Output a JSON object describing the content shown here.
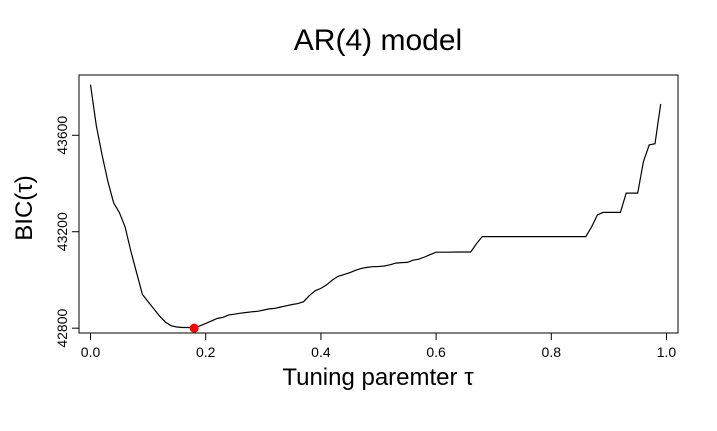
{
  "chart_data": {
    "type": "line",
    "title": "AR(4) model",
    "xlabel": "Tuning paremter τ",
    "ylabel": "BIC(τ)",
    "xlim": [
      -0.02,
      1.02
    ],
    "ylim": [
      42780,
      43850
    ],
    "x_ticks": [
      {
        "value": 0.0,
        "label": "0.0"
      },
      {
        "value": 0.2,
        "label": "0.2"
      },
      {
        "value": 0.4,
        "label": "0.4"
      },
      {
        "value": 0.6,
        "label": "0.6"
      },
      {
        "value": 0.8,
        "label": "0.8"
      },
      {
        "value": 1.0,
        "label": "1.0"
      }
    ],
    "y_ticks": [
      {
        "value": 42800,
        "label": "42800"
      },
      {
        "value": 43200,
        "label": "43200"
      },
      {
        "value": 43600,
        "label": "43600"
      }
    ],
    "grid": false,
    "line_color": "#000000",
    "series": [
      {
        "x": [
          0.0,
          0.01,
          0.02,
          0.03,
          0.04,
          0.05,
          0.06,
          0.07,
          0.08,
          0.09,
          0.1,
          0.11,
          0.12,
          0.13,
          0.14,
          0.15,
          0.16,
          0.17,
          0.18,
          0.19,
          0.2,
          0.21,
          0.22,
          0.23,
          0.24,
          0.25,
          0.26,
          0.27,
          0.28,
          0.29,
          0.3,
          0.31,
          0.32,
          0.33,
          0.34,
          0.35,
          0.36,
          0.37,
          0.38,
          0.39,
          0.4,
          0.41,
          0.42,
          0.43,
          0.44,
          0.45,
          0.46,
          0.47,
          0.48,
          0.49,
          0.5,
          0.51,
          0.52,
          0.53,
          0.54,
          0.55,
          0.56,
          0.57,
          0.58,
          0.59,
          0.6,
          0.62,
          0.64,
          0.66,
          0.67,
          0.68,
          0.7,
          0.72,
          0.74,
          0.76,
          0.78,
          0.8,
          0.82,
          0.84,
          0.86,
          0.87,
          0.88,
          0.89,
          0.9,
          0.91,
          0.92,
          0.93,
          0.94,
          0.95,
          0.96,
          0.97,
          0.98,
          0.99
        ],
        "y": [
          43810,
          43640,
          43520,
          43410,
          43320,
          43280,
          43220,
          43120,
          43030,
          42940,
          42910,
          42880,
          42850,
          42825,
          42810,
          42805,
          42803,
          42803,
          42800,
          42810,
          42820,
          42830,
          42840,
          42845,
          42855,
          42858,
          42862,
          42865,
          42868,
          42870,
          42875,
          42880,
          42882,
          42888,
          42893,
          42898,
          42902,
          42910,
          42935,
          42955,
          42965,
          42980,
          43000,
          43015,
          43022,
          43030,
          43040,
          43048,
          43052,
          43055,
          43056,
          43058,
          43063,
          43070,
          43072,
          43073,
          43082,
          43086,
          43095,
          43105,
          43115,
          43115,
          43116,
          43116,
          43150,
          43180,
          43180,
          43180,
          43180,
          43180,
          43180,
          43180,
          43180,
          43180,
          43180,
          43220,
          43270,
          43280,
          43280,
          43280,
          43280,
          43360,
          43360,
          43360,
          43490,
          43560,
          43565,
          43730
        ]
      }
    ],
    "highlight_point": {
      "x": 0.18,
      "y": 42800,
      "color": "#ff0000"
    }
  }
}
